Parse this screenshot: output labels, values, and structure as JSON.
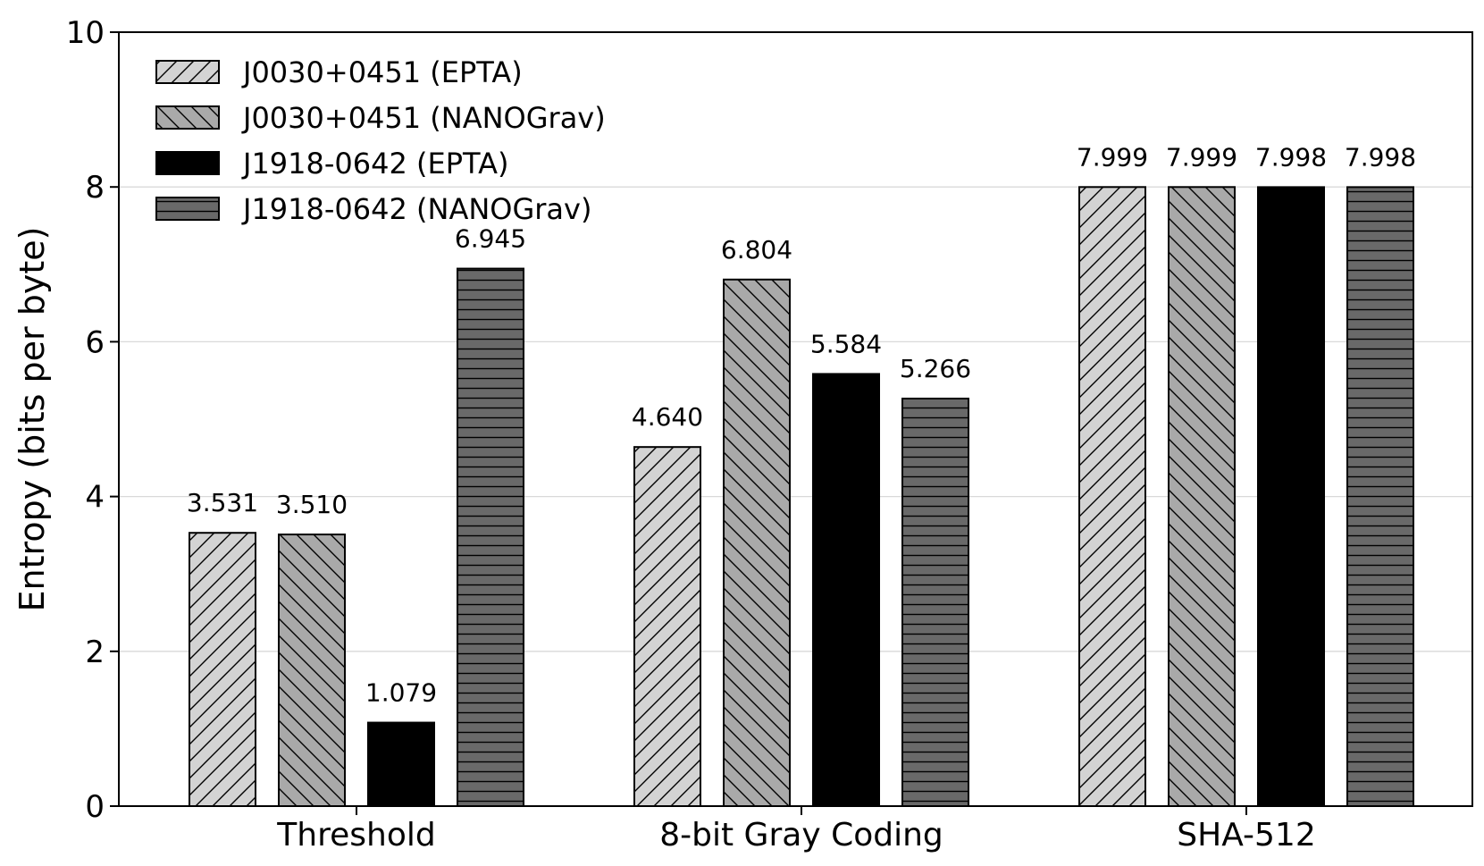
{
  "chart_data": {
    "type": "bar",
    "title": "",
    "xlabel": "",
    "ylabel": "Entropy (bits per byte)",
    "ylim": [
      0,
      10
    ],
    "yticks": [
      0,
      2,
      4,
      6,
      8,
      10
    ],
    "grid": "horizontal",
    "legend_position": "top-left",
    "categories": [
      "Threshold",
      "8-bit Gray Coding",
      "SHA-512"
    ],
    "series": [
      {
        "name": "J0030+0451 (EPTA)",
        "values": [
          3.531,
          4.64,
          7.999
        ],
        "labels": [
          "3.531",
          "4.640",
          "7.999"
        ],
        "fill": "#d3d3d3",
        "pattern": "diagonal-forward"
      },
      {
        "name": "J0030+0451 (NANOGrav)",
        "values": [
          3.51,
          6.804,
          7.999
        ],
        "labels": [
          "3.510",
          "6.804",
          "7.999"
        ],
        "fill": "#a9a9a9",
        "pattern": "diagonal-back"
      },
      {
        "name": "J1918-0642 (EPTA)",
        "values": [
          1.079,
          5.584,
          7.998
        ],
        "labels": [
          "1.079",
          "5.584",
          "7.998"
        ],
        "fill": "#000000",
        "pattern": "none"
      },
      {
        "name": "J1918-0642 (NANOGrav)",
        "values": [
          6.945,
          5.266,
          7.998
        ],
        "labels": [
          "6.945",
          "5.266",
          "7.998"
        ],
        "fill": "#696969",
        "pattern": "horizontal"
      }
    ]
  }
}
